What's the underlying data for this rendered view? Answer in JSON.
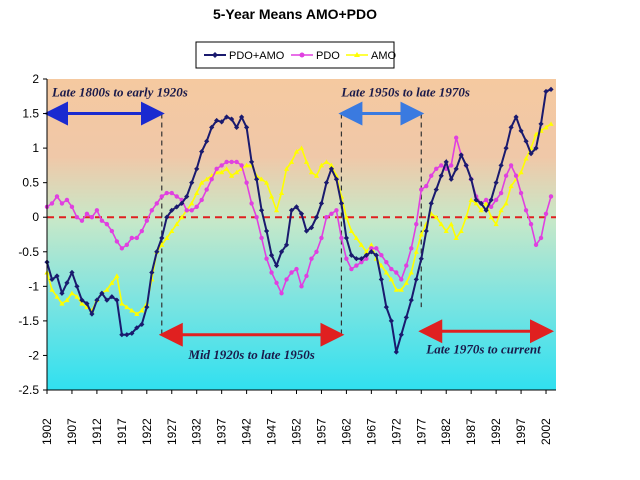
{
  "chart_data": {
    "type": "line",
    "title": "5-Year Means AMO+PDO",
    "ylim": [
      -2.5,
      2
    ],
    "yticks": [
      "2",
      "1.5",
      "1",
      "0.5",
      "0",
      "-0.5",
      "-1",
      "-1.5",
      "-2",
      "-2.5"
    ],
    "xlim": [
      1902,
      2004
    ],
    "xticks": [
      "1902",
      "1907",
      "1912",
      "1917",
      "1922",
      "1927",
      "1932",
      "1937",
      "1942",
      "1947",
      "1952",
      "1957",
      "1962",
      "1967",
      "1972",
      "1977",
      "1982",
      "1987",
      "1992",
      "1997",
      "2002"
    ],
    "series": [
      {
        "name": "PDO+AMO",
        "color": "#1a1a6e",
        "marker": "diamond",
        "x": [
          1902,
          1903,
          1904,
          1905,
          1906,
          1907,
          1908,
          1909,
          1910,
          1911,
          1912,
          1913,
          1914,
          1915,
          1916,
          1917,
          1918,
          1919,
          1920,
          1921,
          1922,
          1923,
          1924,
          1925,
          1926,
          1927,
          1928,
          1929,
          1930,
          1931,
          1932,
          1933,
          1934,
          1935,
          1936,
          1937,
          1938,
          1939,
          1940,
          1941,
          1942,
          1943,
          1944,
          1945,
          1946,
          1947,
          1948,
          1949,
          1950,
          1951,
          1952,
          1953,
          1954,
          1955,
          1956,
          1957,
          1958,
          1959,
          1960,
          1961,
          1962,
          1963,
          1964,
          1965,
          1966,
          1967,
          1968,
          1969,
          1970,
          1971,
          1972,
          1973,
          1974,
          1975,
          1976,
          1977,
          1978,
          1979,
          1980,
          1981,
          1982,
          1983,
          1984,
          1985,
          1986,
          1987,
          1988,
          1989,
          1990,
          1991,
          1992,
          1993,
          1994,
          1995,
          1996,
          1997,
          1998,
          1999,
          2000,
          2001,
          2002,
          2003
        ],
        "values": [
          -0.65,
          -0.9,
          -0.85,
          -1.1,
          -0.95,
          -0.8,
          -1.0,
          -1.2,
          -1.25,
          -1.4,
          -1.2,
          -1.1,
          -1.2,
          -1.15,
          -1.2,
          -1.7,
          -1.7,
          -1.68,
          -1.6,
          -1.55,
          -1.3,
          -0.8,
          -0.5,
          -0.3,
          0.0,
          0.1,
          0.15,
          0.2,
          0.3,
          0.5,
          0.7,
          0.95,
          1.1,
          1.3,
          1.4,
          1.38,
          1.45,
          1.42,
          1.3,
          1.45,
          1.3,
          0.8,
          0.55,
          0.1,
          -0.2,
          -0.55,
          -0.7,
          -0.5,
          -0.4,
          0.1,
          0.15,
          0.05,
          -0.2,
          -0.15,
          0.0,
          0.2,
          0.5,
          0.7,
          0.55,
          0.2,
          -0.3,
          -0.55,
          -0.6,
          -0.6,
          -0.55,
          -0.5,
          -0.55,
          -0.9,
          -1.3,
          -1.5,
          -1.95,
          -1.7,
          -1.45,
          -1.2,
          -0.9,
          -0.6,
          -0.2,
          0.2,
          0.4,
          0.6,
          0.8,
          0.55,
          0.7,
          0.9,
          0.75,
          0.55,
          0.25,
          0.2,
          0.1,
          0.25,
          0.5,
          0.75,
          1.0,
          1.3,
          1.45,
          1.25,
          1.1,
          0.92,
          1.0,
          1.35,
          1.82,
          1.85
        ]
      },
      {
        "name": "PDO",
        "color": "#e040e0",
        "marker": "circle",
        "x": [
          1902,
          1903,
          1904,
          1905,
          1906,
          1907,
          1908,
          1909,
          1910,
          1911,
          1912,
          1913,
          1914,
          1915,
          1916,
          1917,
          1918,
          1919,
          1920,
          1921,
          1922,
          1923,
          1924,
          1925,
          1926,
          1927,
          1928,
          1929,
          1930,
          1931,
          1932,
          1933,
          1934,
          1935,
          1936,
          1937,
          1938,
          1939,
          1940,
          1941,
          1942,
          1943,
          1944,
          1945,
          1946,
          1947,
          1948,
          1949,
          1950,
          1951,
          1952,
          1953,
          1954,
          1955,
          1956,
          1957,
          1958,
          1959,
          1960,
          1961,
          1962,
          1963,
          1964,
          1965,
          1966,
          1967,
          1968,
          1969,
          1970,
          1971,
          1972,
          1973,
          1974,
          1975,
          1976,
          1977,
          1978,
          1979,
          1980,
          1981,
          1982,
          1983,
          1984,
          1985,
          1986,
          1987,
          1988,
          1989,
          1990,
          1991,
          1992,
          1993,
          1994,
          1995,
          1996,
          1997,
          1998,
          1999,
          2000,
          2001,
          2002,
          2003
        ],
        "values": [
          0.15,
          0.2,
          0.3,
          0.2,
          0.25,
          0.15,
          0.0,
          -0.05,
          0.05,
          0.0,
          0.1,
          -0.05,
          -0.1,
          -0.2,
          -0.35,
          -0.45,
          -0.4,
          -0.3,
          -0.3,
          -0.2,
          -0.05,
          0.1,
          0.2,
          0.3,
          0.35,
          0.35,
          0.3,
          0.25,
          0.1,
          0.1,
          0.15,
          0.25,
          0.4,
          0.55,
          0.7,
          0.75,
          0.8,
          0.8,
          0.8,
          0.75,
          0.5,
          0.2,
          0.0,
          -0.3,
          -0.6,
          -0.8,
          -0.95,
          -1.1,
          -0.9,
          -0.8,
          -0.75,
          -1.0,
          -0.85,
          -0.6,
          -0.5,
          -0.3,
          0.0,
          0.05,
          0.1,
          -0.3,
          -0.6,
          -0.75,
          -0.7,
          -0.65,
          -0.6,
          -0.45,
          -0.45,
          -0.55,
          -0.65,
          -0.75,
          -0.8,
          -0.9,
          -0.7,
          -0.45,
          -0.1,
          0.4,
          0.45,
          0.6,
          0.7,
          0.75,
          0.7,
          0.75,
          1.15,
          0.9,
          0.75,
          0.55,
          0.3,
          0.2,
          0.25,
          0.15,
          0.25,
          0.35,
          0.6,
          0.75,
          0.6,
          0.35,
          0.1,
          -0.1,
          -0.4,
          -0.3,
          0.05,
          0.3
        ]
      },
      {
        "name": "AMO",
        "color": "#ffff00",
        "marker": "triangle",
        "x": [
          1902,
          1903,
          1904,
          1905,
          1906,
          1907,
          1908,
          1909,
          1910,
          1911,
          1912,
          1913,
          1914,
          1915,
          1916,
          1917,
          1918,
          1919,
          1920,
          1921,
          1922,
          1923,
          1924,
          1925,
          1926,
          1927,
          1928,
          1929,
          1930,
          1931,
          1932,
          1933,
          1934,
          1935,
          1936,
          1937,
          1938,
          1939,
          1940,
          1941,
          1942,
          1943,
          1944,
          1945,
          1946,
          1947,
          1948,
          1949,
          1950,
          1951,
          1952,
          1953,
          1954,
          1955,
          1956,
          1957,
          1958,
          1959,
          1960,
          1961,
          1962,
          1963,
          1964,
          1965,
          1966,
          1967,
          1968,
          1969,
          1970,
          1971,
          1972,
          1973,
          1974,
          1975,
          1976,
          1977,
          1978,
          1979,
          1980,
          1981,
          1982,
          1983,
          1984,
          1985,
          1986,
          1987,
          1988,
          1989,
          1990,
          1991,
          1992,
          1993,
          1994,
          1995,
          1996,
          1997,
          1998,
          1999,
          2000,
          2001,
          2002,
          2003
        ],
        "values": [
          -0.8,
          -1.05,
          -1.15,
          -1.25,
          -1.2,
          -1.1,
          -1.15,
          -1.25,
          -1.3,
          -1.35,
          -1.2,
          -1.1,
          -1.05,
          -0.95,
          -0.85,
          -1.25,
          -1.3,
          -1.35,
          -1.4,
          -1.35,
          -1.25,
          -0.9,
          -0.5,
          -0.4,
          -0.3,
          -0.2,
          -0.1,
          0.0,
          0.1,
          0.2,
          0.35,
          0.5,
          0.55,
          0.6,
          0.65,
          0.65,
          0.7,
          0.6,
          0.65,
          0.7,
          0.75,
          0.75,
          0.6,
          0.55,
          0.5,
          0.3,
          0.1,
          0.35,
          0.7,
          0.8,
          0.95,
          1.0,
          0.8,
          0.65,
          0.6,
          0.75,
          0.8,
          0.75,
          0.6,
          0.3,
          0.0,
          -0.2,
          -0.3,
          -0.4,
          -0.5,
          -0.4,
          -0.6,
          -0.7,
          -0.8,
          -0.9,
          -1.05,
          -1.05,
          -0.95,
          -0.8,
          -0.5,
          -0.25,
          -0.1,
          0.05,
          0.0,
          -0.1,
          -0.2,
          -0.1,
          -0.3,
          -0.2,
          0.0,
          0.25,
          0.2,
          0.1,
          0.2,
          0.0,
          -0.1,
          0.1,
          0.2,
          0.45,
          0.55,
          0.65,
          0.85,
          1.0,
          1.2,
          1.25,
          1.3,
          1.35
        ]
      }
    ],
    "legend": {
      "placement": "top-center",
      "entries": [
        "PDO+AMO",
        "PDO",
        "AMO"
      ]
    },
    "zero_line": {
      "value": 0,
      "color": "#e02020",
      "style": "dashed"
    },
    "regime_dividers": [
      1925,
      1961,
      1977
    ],
    "annotations": [
      {
        "text": "Late 1800s to early 1920s",
        "arrow_color": "#1a2ad0",
        "range": [
          1902,
          1925
        ]
      },
      {
        "text": "Mid 1920s to late 1950s",
        "arrow_color": "#e02020",
        "range": [
          1925,
          1961
        ]
      },
      {
        "text": "Late 1950s to late 1970s",
        "arrow_color": "#3a7ae0",
        "range": [
          1961,
          1977
        ]
      },
      {
        "text": "Late 1970s to current",
        "arrow_color": "#e02020",
        "range": [
          1977,
          2003
        ]
      }
    ]
  }
}
